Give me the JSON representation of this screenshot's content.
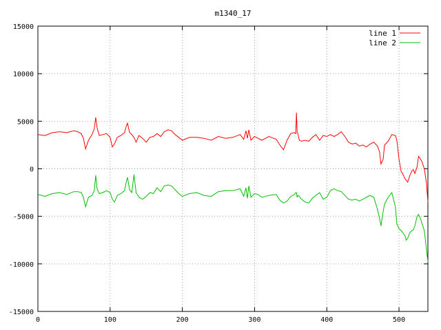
{
  "chart_data": {
    "type": "line",
    "title": "m1340_17",
    "xlabel": "",
    "ylabel": "",
    "xlim": [
      0,
      540
    ],
    "ylim": [
      -15000,
      15000
    ],
    "xticks": [
      0,
      100,
      200,
      300,
      400,
      500
    ],
    "yticks": [
      -15000,
      -10000,
      -5000,
      0,
      5000,
      10000,
      15000
    ],
    "grid": true,
    "legend_position": "top-right",
    "series": [
      {
        "name": "line 1",
        "color": "#ff0000",
        "x": [
          0,
          10,
          20,
          30,
          40,
          50,
          55,
          60,
          63,
          66,
          70,
          75,
          78,
          80,
          82,
          85,
          90,
          95,
          100,
          103,
          106,
          110,
          115,
          120,
          122,
          124,
          127,
          130,
          133,
          136,
          140,
          145,
          150,
          155,
          160,
          165,
          170,
          175,
          180,
          185,
          190,
          195,
          200,
          210,
          220,
          230,
          240,
          250,
          260,
          270,
          280,
          285,
          288,
          290,
          292,
          295,
          300,
          305,
          310,
          320,
          330,
          335,
          340,
          345,
          350,
          355,
          357,
          358,
          359,
          360,
          362,
          365,
          370,
          375,
          380,
          385,
          390,
          395,
          400,
          405,
          410,
          415,
          420,
          425,
          430,
          435,
          440,
          445,
          450,
          455,
          460,
          465,
          470,
          473,
          475,
          478,
          480,
          485,
          490,
          495,
          497,
          500,
          503,
          505,
          508,
          510,
          512,
          515,
          518,
          520,
          522,
          525,
          527,
          530,
          532,
          535,
          538,
          540
        ],
        "y": [
          3600,
          3500,
          3800,
          3900,
          3800,
          4000,
          3900,
          3700,
          3200,
          2100,
          3000,
          3600,
          4200,
          5400,
          4300,
          3500,
          3600,
          3700,
          3300,
          2300,
          2600,
          3300,
          3500,
          3800,
          4400,
          4800,
          3800,
          3600,
          3300,
          2800,
          3500,
          3200,
          2800,
          3300,
          3400,
          3700,
          3400,
          3900,
          4100,
          4000,
          3600,
          3300,
          3000,
          3300,
          3300,
          3200,
          3000,
          3400,
          3200,
          3300,
          3600,
          3100,
          4000,
          3200,
          4100,
          3000,
          3400,
          3200,
          3000,
          3400,
          3100,
          2500,
          2000,
          3000,
          3700,
          3800,
          3700,
          5900,
          3800,
          3700,
          3000,
          2900,
          3000,
          2900,
          3300,
          3600,
          3000,
          3500,
          3400,
          3600,
          3400,
          3600,
          3900,
          3400,
          2800,
          2600,
          2700,
          2400,
          2500,
          2300,
          2600,
          2800,
          2400,
          1800,
          500,
          1000,
          2500,
          2900,
          3600,
          3500,
          3000,
          1000,
          -300,
          -500,
          -1000,
          -1200,
          -1400,
          -700,
          -200,
          -100,
          -500,
          200,
          1300,
          1000,
          700,
          0,
          -1500,
          -3500
        ]
      },
      {
        "name": "line 2",
        "color": "#00c000",
        "x": [
          0,
          10,
          20,
          30,
          40,
          50,
          55,
          60,
          63,
          66,
          70,
          75,
          78,
          80,
          82,
          85,
          90,
          95,
          100,
          103,
          106,
          110,
          115,
          120,
          122,
          124,
          127,
          130,
          133,
          136,
          140,
          145,
          150,
          155,
          160,
          165,
          170,
          175,
          180,
          185,
          190,
          195,
          200,
          210,
          220,
          230,
          240,
          250,
          260,
          270,
          280,
          285,
          288,
          290,
          292,
          295,
          300,
          305,
          310,
          320,
          330,
          335,
          340,
          345,
          350,
          355,
          357,
          358,
          359,
          360,
          362,
          365,
          370,
          375,
          380,
          385,
          390,
          395,
          400,
          405,
          410,
          415,
          420,
          425,
          430,
          435,
          440,
          445,
          450,
          455,
          460,
          465,
          470,
          473,
          475,
          478,
          480,
          485,
          490,
          495,
          497,
          500,
          503,
          505,
          508,
          510,
          512,
          515,
          518,
          520,
          522,
          525,
          527,
          530,
          532,
          535,
          538,
          540
        ],
        "y": [
          -2700,
          -2900,
          -2600,
          -2500,
          -2700,
          -2400,
          -2400,
          -2500,
          -3000,
          -4000,
          -3000,
          -2800,
          -2300,
          -700,
          -2100,
          -2600,
          -2500,
          -2300,
          -2500,
          -3200,
          -3500,
          -2800,
          -2600,
          -2300,
          -1500,
          -900,
          -2200,
          -2500,
          -600,
          -2500,
          -3000,
          -3200,
          -2900,
          -2500,
          -2600,
          -2000,
          -2400,
          -1800,
          -1700,
          -1800,
          -2200,
          -2600,
          -2900,
          -2600,
          -2500,
          -2800,
          -2900,
          -2400,
          -2300,
          -2300,
          -2100,
          -2900,
          -2000,
          -3100,
          -1800,
          -3000,
          -2600,
          -2700,
          -3000,
          -2800,
          -2700,
          -3300,
          -3600,
          -3400,
          -2900,
          -2700,
          -2500,
          -2500,
          -3000,
          -2800,
          -2900,
          -3200,
          -3500,
          -3600,
          -3100,
          -2800,
          -2500,
          -3200,
          -3000,
          -2300,
          -2100,
          -2300,
          -2400,
          -2800,
          -3200,
          -3300,
          -3200,
          -3400,
          -3200,
          -3000,
          -2800,
          -3000,
          -4200,
          -5200,
          -6000,
          -4500,
          -3700,
          -3000,
          -2500,
          -4000,
          -5800,
          -6300,
          -6500,
          -6700,
          -7000,
          -7500,
          -7300,
          -6700,
          -6500,
          -6400,
          -6000,
          -5000,
          -4800,
          -5300,
          -5800,
          -6500,
          -8500,
          -9800
        ]
      }
    ]
  }
}
